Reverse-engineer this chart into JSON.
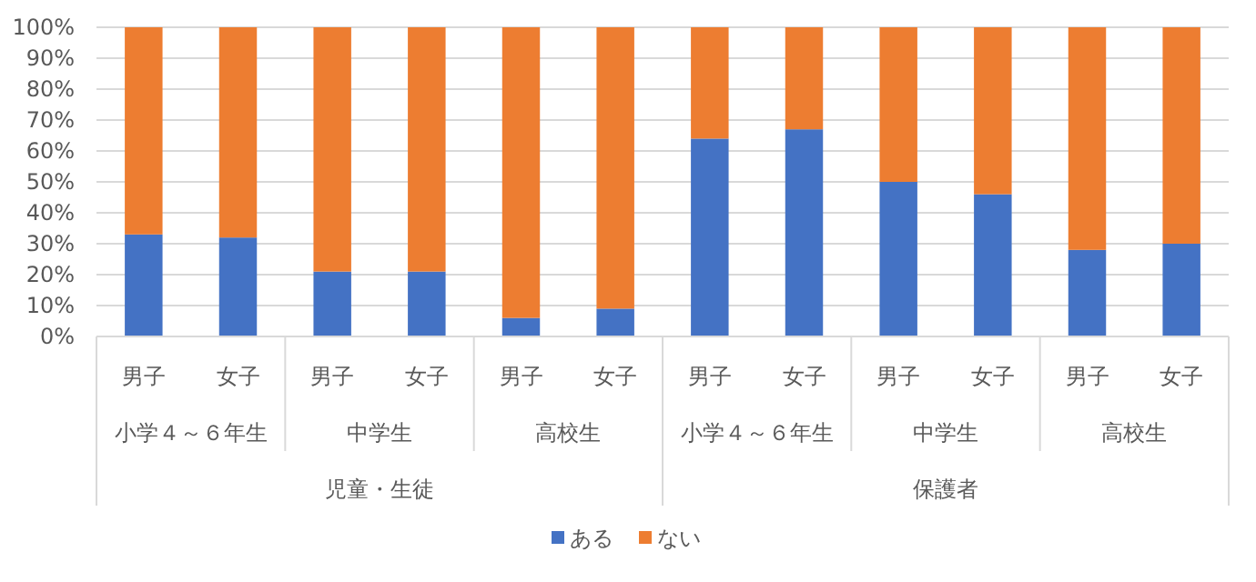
{
  "chart_data": {
    "type": "bar",
    "stacked": true,
    "categories": [
      "男子",
      "女子",
      "男子",
      "女子",
      "男子",
      "女子",
      "男子",
      "女子",
      "男子",
      "女子",
      "男子",
      "女子"
    ],
    "series": [
      {
        "name": "ある",
        "color": "#4472c4",
        "values": [
          33,
          32,
          21,
          21,
          6,
          9,
          64,
          67,
          50,
          46,
          28,
          30
        ]
      },
      {
        "name": "ない",
        "color": "#ed7d31",
        "values": [
          67,
          68,
          79,
          79,
          94,
          91,
          36,
          33,
          50,
          54,
          72,
          70
        ]
      }
    ],
    "ylim": [
      0,
      100
    ],
    "yticks": [
      {
        "value": 0,
        "label": "0%"
      },
      {
        "value": 10,
        "label": "10%"
      },
      {
        "value": 20,
        "label": "20%"
      },
      {
        "value": 30,
        "label": "30%"
      },
      {
        "value": 40,
        "label": "40%"
      },
      {
        "value": 50,
        "label": "50%"
      },
      {
        "value": 60,
        "label": "60%"
      },
      {
        "value": 70,
        "label": "70%"
      },
      {
        "value": 80,
        "label": "80%"
      },
      {
        "value": 90,
        "label": "90%"
      },
      {
        "value": 100,
        "label": "100%"
      }
    ],
    "grid": "y",
    "legend": "bottom",
    "annotations": [
      "小学４～６年生",
      "中学生",
      "高校生",
      "小学４～６年生",
      "中学生",
      "高校生",
      "児童・生徒",
      "保護者"
    ]
  }
}
